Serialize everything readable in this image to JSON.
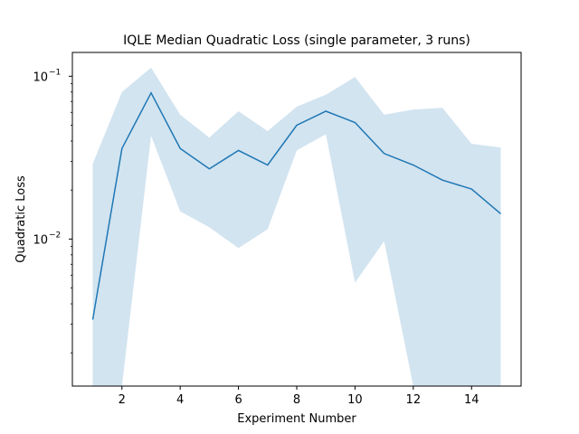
{
  "chart_data": {
    "type": "line",
    "title": "IQLE Median Quadratic Loss (single parameter, 3 runs)",
    "xlabel": "Experiment Number",
    "ylabel": "Quadratic Loss",
    "yscale": "log",
    "xlim": [
      0.3,
      15.7
    ],
    "ylim": [
      0.00125,
      0.14
    ],
    "x_ticks": [
      2,
      4,
      6,
      8,
      10,
      12,
      14
    ],
    "y_ticks": [
      {
        "value": 0.1,
        "base": "10",
        "exp": "−1"
      },
      {
        "value": 0.01,
        "base": "10",
        "exp": "−2"
      }
    ],
    "grid": false,
    "legend": "none",
    "series_color": "#1f77b4",
    "band_color": "#1f77b4",
    "band_opacity": 0.2,
    "x": [
      1,
      2,
      3,
      4,
      5,
      6,
      7,
      8,
      9,
      10,
      11,
      12,
      13,
      14,
      15
    ],
    "series": [
      {
        "median": [
          0.0032,
          0.036,
          0.079,
          0.036,
          0.027,
          0.035,
          0.0285,
          0.05,
          0.061,
          0.052,
          0.0335,
          0.0285,
          0.023,
          0.0203,
          0.0143
        ],
        "upper": [
          0.029,
          0.08,
          0.113,
          0.058,
          0.042,
          0.061,
          0.046,
          0.065,
          0.077,
          0.099,
          0.058,
          0.0625,
          0.064,
          0.0385,
          0.0365
        ],
        "lower": [
          null,
          null,
          0.043,
          0.0148,
          0.0118,
          0.0088,
          0.0115,
          0.035,
          0.044,
          0.0054,
          0.0097,
          null,
          null,
          null,
          null
        ]
      }
    ]
  }
}
